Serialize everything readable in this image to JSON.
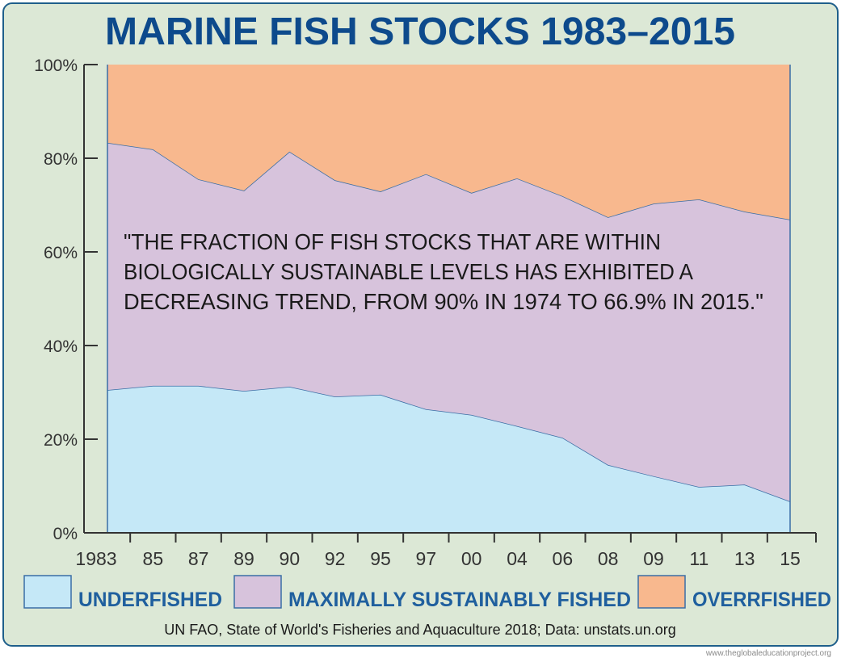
{
  "watermark": "www.theglobaleducationproject.org",
  "chart_data": {
    "type": "area",
    "stacked": true,
    "title": "MARINE FISH STOCKS 1983–2015",
    "annotation": "\"THE FRACTION OF FISH STOCKS THAT ARE WITHIN|BIOLOGICALLY SUSTAINABLE LEVELS HAS EXHIBITED A|DECREASING TREND, FROM 90% IN 1974 TO 66.9% IN 2015.\"",
    "source": "UN FAO, State of World's Fisheries and Aquaculture 2018; Data: unstats.un.org",
    "categories": [
      "1983",
      "85",
      "87",
      "89",
      "90",
      "92",
      "95",
      "97",
      "00",
      "04",
      "06",
      "08",
      "09",
      "11",
      "13",
      "15"
    ],
    "yticks": [
      "0%",
      "20%",
      "40%",
      "60%",
      "80%",
      "100%"
    ],
    "ylim": [
      0,
      100
    ],
    "grid": false,
    "legend": "bottom",
    "series": [
      {
        "name": "UNDERFISHED",
        "color": "#c5e8f7",
        "values": [
          30.5,
          31.4,
          31.4,
          30.3,
          31.2,
          29.1,
          29.5,
          26.4,
          25.2,
          22.8,
          20.3,
          14.5,
          12.1,
          9.8,
          10.3,
          6.7
        ]
      },
      {
        "name": "MAXIMALLY SUSTAINABLY  FISHED",
        "color": "#d7c3dc",
        "values": [
          52.8,
          50.5,
          44.1,
          42.8,
          50.2,
          46.2,
          43.4,
          50.2,
          47.4,
          52.9,
          51.6,
          52.9,
          58.2,
          61.4,
          58.3,
          60.2
        ]
      },
      {
        "name": "OVERRFISHED",
        "color": "#f8b88e",
        "values": [
          16.7,
          18.1,
          24.5,
          26.9,
          18.6,
          24.7,
          27.1,
          23.4,
          27.4,
          24.3,
          28.1,
          32.6,
          29.7,
          28.8,
          31.4,
          33.1
        ]
      }
    ]
  }
}
